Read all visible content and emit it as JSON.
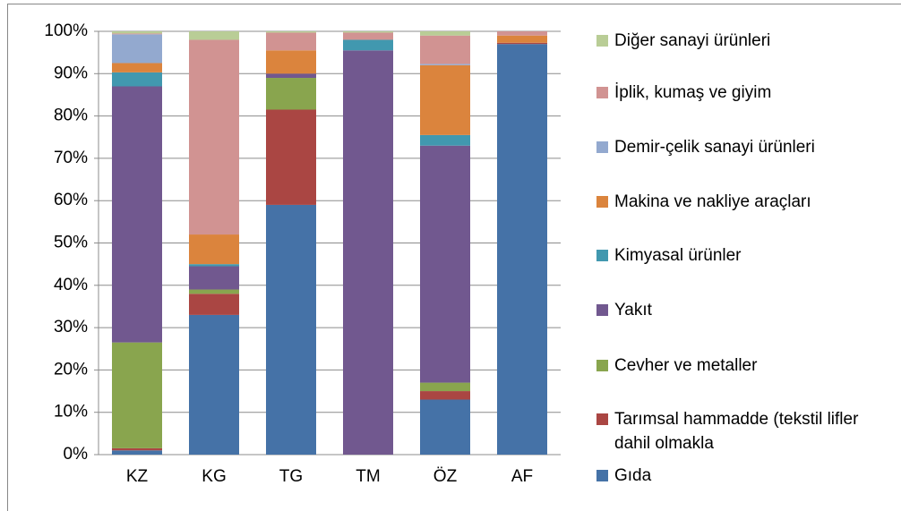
{
  "chart_data": {
    "type": "stacked_bar",
    "categories": [
      "KZ",
      "KG",
      "TG",
      "TM",
      "ÖZ",
      "AF"
    ],
    "series": [
      {
        "name": "Gıda",
        "color": "#4572a7",
        "values": [
          1,
          33,
          59,
          0,
          13,
          97
        ]
      },
      {
        "name": "Tarımsal hammadde (tekstil lifler dahil olmakla",
        "color": "#aa4643",
        "values": [
          0.5,
          5,
          22.5,
          0,
          2,
          0.3
        ]
      },
      {
        "name": "Cevher ve metaller",
        "color": "#89a54e",
        "values": [
          25,
          1,
          7.5,
          0,
          2,
          0
        ]
      },
      {
        "name": "Yakıt",
        "color": "#71588f",
        "values": [
          60.5,
          5.5,
          1,
          95.5,
          56,
          0
        ]
      },
      {
        "name": "Kimyasal ürünler",
        "color": "#4198af",
        "values": [
          3.3,
          0.5,
          0,
          2.5,
          2.5,
          0
        ]
      },
      {
        "name": "Makina ve nakliye araçları",
        "color": "#db843d",
        "values": [
          2.2,
          7,
          5.5,
          0,
          16.5,
          1.7
        ]
      },
      {
        "name": "Demir-çelik sanayi ürünleri",
        "color": "#93a9cf",
        "values": [
          6.8,
          0,
          0,
          0,
          0.3,
          0
        ]
      },
      {
        "name": "İplik, kumaş ve giyim",
        "color": "#d19392",
        "values": [
          0.2,
          46,
          4.2,
          1.7,
          6.7,
          1
        ]
      },
      {
        "name": "Diğer sanayi ürünleri",
        "color": "#b9cd96",
        "values": [
          0.5,
          2,
          0.3,
          0.3,
          1,
          0
        ]
      }
    ],
    "ylim": [
      0,
      100
    ],
    "yticks": [
      {
        "value": 0,
        "label": "0%"
      },
      {
        "value": 10,
        "label": "10%"
      },
      {
        "value": 20,
        "label": "20%"
      },
      {
        "value": 30,
        "label": "30%"
      },
      {
        "value": 40,
        "label": "40%"
      },
      {
        "value": 50,
        "label": "50%"
      },
      {
        "value": 60,
        "label": "60%"
      },
      {
        "value": 70,
        "label": "70%"
      },
      {
        "value": 80,
        "label": "80%"
      },
      {
        "value": 90,
        "label": "90%"
      },
      {
        "value": 100,
        "label": "100%"
      }
    ],
    "grid": true,
    "legend": "right"
  }
}
